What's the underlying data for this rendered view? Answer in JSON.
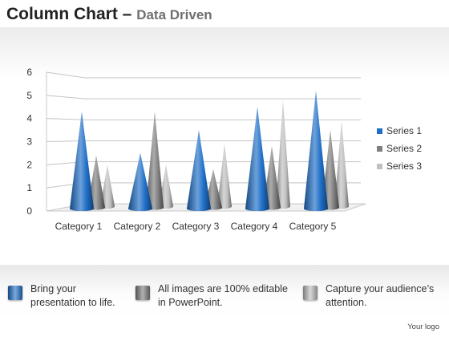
{
  "title": {
    "main": "Column Chart",
    "dash": "–",
    "sub": "Data Driven"
  },
  "chart_data": {
    "type": "bar",
    "style": "3d-cones",
    "categories": [
      "Category 1",
      "Category 2",
      "Category 3",
      "Category 4",
      "Category 5"
    ],
    "series": [
      {
        "name": "Series 1",
        "values": [
          4.2,
          2.4,
          3.4,
          4.4,
          5.1
        ],
        "color": "#1f6fc8"
      },
      {
        "name": "Series 2",
        "values": [
          2.3,
          4.2,
          1.7,
          2.7,
          3.4
        ],
        "color": "#7f7f7f"
      },
      {
        "name": "Series 3",
        "values": [
          1.9,
          1.9,
          2.8,
          4.7,
          3.8
        ],
        "color": "#c0c0c0"
      }
    ],
    "y_ticks": [
      "0",
      "1",
      "2",
      "3",
      "4",
      "5",
      "6"
    ],
    "ylim": [
      0,
      6
    ],
    "grid": true,
    "legend": "right"
  },
  "features": [
    {
      "text_line1": "Bring your",
      "text_line2": "presentation to life.",
      "color": "#1f6fc8"
    },
    {
      "text_line1": "All images are 100% editable",
      "text_line2": "in PowerPoint.",
      "color": "#7f7f7f"
    },
    {
      "text_line1": "Capture your audience’s",
      "text_line2": "attention.",
      "color": "#c0c0c0"
    }
  ],
  "footer": {
    "logo_text": "Your logo"
  }
}
